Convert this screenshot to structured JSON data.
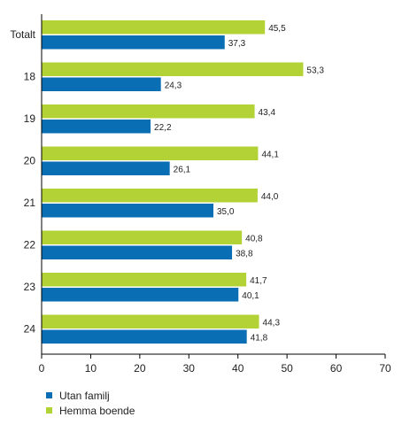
{
  "chart_data": {
    "type": "bar",
    "orientation": "horizontal",
    "categories": [
      "Totalt",
      "18",
      "19",
      "20",
      "21",
      "22",
      "23",
      "24"
    ],
    "series": [
      {
        "name": "Hemma boende",
        "color": "#b2d235",
        "values": [
          45.5,
          53.3,
          43.4,
          44.1,
          44.0,
          40.8,
          41.7,
          44.3
        ],
        "labels": [
          "45,5",
          "53,3",
          "43,4",
          "44,1",
          "44,0",
          "40,8",
          "41,7",
          "44,3"
        ]
      },
      {
        "name": "Utan familj",
        "color": "#0a6eb4",
        "values": [
          37.3,
          24.3,
          22.2,
          26.1,
          35.0,
          38.8,
          40.1,
          41.8
        ],
        "labels": [
          "37,3",
          "24,3",
          "22,2",
          "26,1",
          "35,0",
          "38,8",
          "40,1",
          "41,8"
        ]
      }
    ],
    "xlim": [
      0,
      70
    ],
    "xticks": [
      "0",
      "10",
      "20",
      "30",
      "40",
      "50",
      "60",
      "70"
    ],
    "grid": false,
    "legend_position": "bottom-left",
    "legend": [
      {
        "name": "Utan familj",
        "color": "#0a6eb4"
      },
      {
        "name": "Hemma boende",
        "color": "#b2d235"
      }
    ]
  }
}
